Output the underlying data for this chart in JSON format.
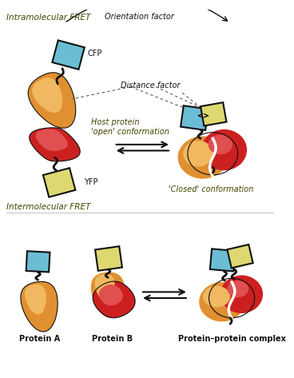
{
  "bg_color": "#ffffff",
  "cfp_color": "#6bbdd4",
  "cfp_dark": "#4a9ab8",
  "yfp_color": "#ddd870",
  "yfp_dark": "#c8c450",
  "orange_body": "#e09030",
  "orange_light": "#f0b860",
  "red_body": "#cc2020",
  "red_light": "#e05050",
  "dark_outline": "#111111",
  "label_color": "#333333",
  "text_intramolecular": "Intramolecular FRET",
  "text_intermolecular": "Intermolecular FRET",
  "text_cfp": "CFP",
  "text_yfp": "YFP",
  "text_host_open": "Host protein\n'open' conformation",
  "text_closed": "'Closed' conformation",
  "text_orientation": "Orientation factor",
  "text_distance": "Distance factor",
  "text_proteinA": "Protein A",
  "text_proteinB": "Protein B",
  "text_complex": "Protein–protein complex"
}
